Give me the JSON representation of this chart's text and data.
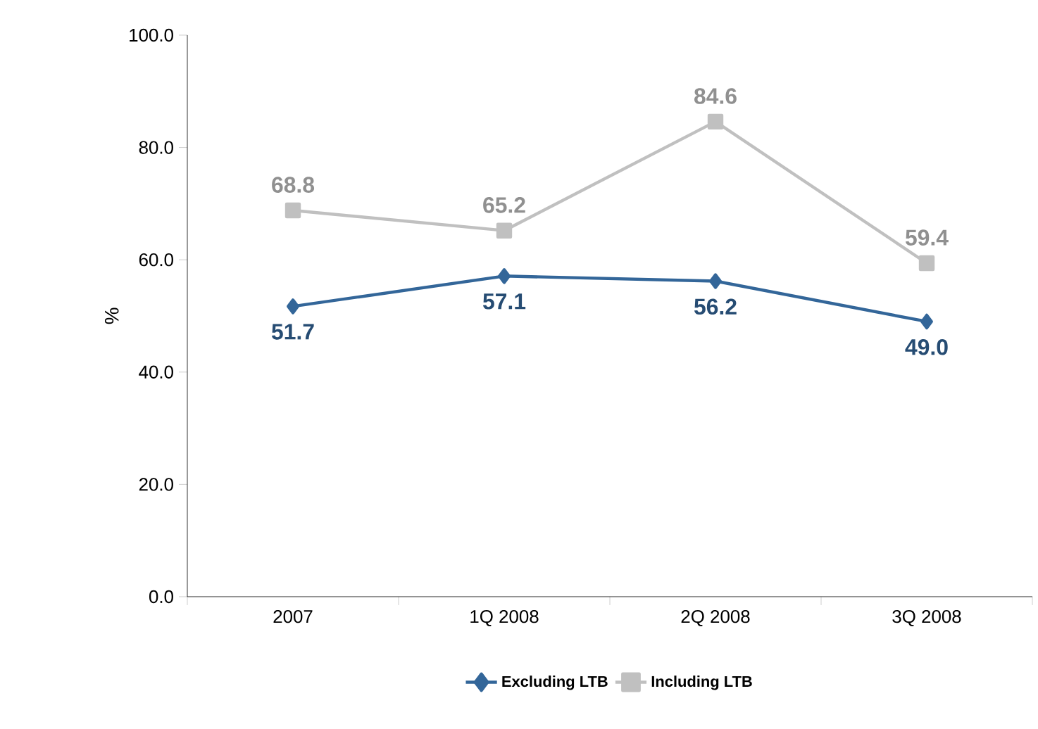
{
  "chart_data": {
    "type": "line",
    "ylabel": "%",
    "categories": [
      "2007",
      "1Q 2008",
      "2Q 2008",
      "3Q 2008"
    ],
    "series": [
      {
        "name": "Excluding LTB",
        "color": "#336699",
        "values": [
          51.7,
          57.1,
          56.2,
          49.0
        ],
        "value_labels": [
          "51.7",
          "57.1",
          "56.2",
          "49.0"
        ],
        "marker": "diamond"
      },
      {
        "name": "Including LTB",
        "color": "#c0c0c0",
        "values": [
          68.8,
          65.2,
          84.6,
          59.4
        ],
        "value_labels": [
          "68.8",
          "65.2",
          "84.6",
          "59.4"
        ],
        "marker": "square"
      }
    ],
    "ylim": [
      0,
      100
    ],
    "yticks": [
      {
        "value": 0,
        "label": "0.0"
      },
      {
        "value": 20,
        "label": "20.0"
      },
      {
        "value": 40,
        "label": "40.0"
      },
      {
        "value": 60,
        "label": "60.0"
      },
      {
        "value": 80,
        "label": "80.0"
      },
      {
        "value": 100,
        "label": "100.0"
      }
    ],
    "grid": false,
    "legend": "bottom",
    "line_style": "solid"
  }
}
